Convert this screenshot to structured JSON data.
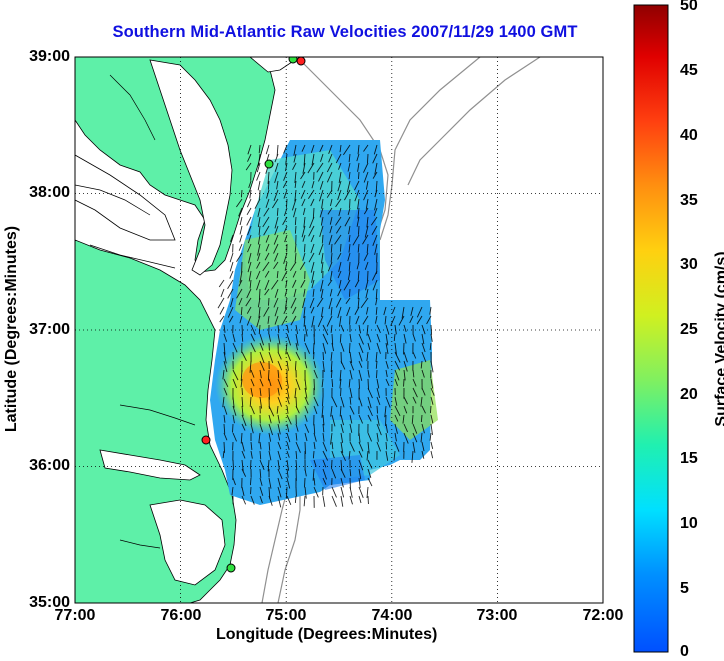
{
  "title": "Southern Mid-Atlantic Raw Velocities 2007/11/29 1400 GMT",
  "x_axis": {
    "label": "Longitude (Degrees:Minutes)",
    "ticks": [
      "77:00",
      "76:00",
      "75:00",
      "74:00",
      "73:00",
      "72:00"
    ]
  },
  "y_axis": {
    "label": "Latitude (Degrees:Minutes)",
    "ticks": [
      "39:00",
      "38:00",
      "37:00",
      "36:00",
      "35:00"
    ]
  },
  "colorbar": {
    "label": "Surface Velocity (cm/s)",
    "ticks": [
      "50",
      "45",
      "40",
      "35",
      "30",
      "25",
      "20",
      "15",
      "10",
      "5",
      "0"
    ],
    "range": [
      0,
      50
    ]
  },
  "colors": {
    "land": "#5ef0a8",
    "water": "#ffffff",
    "title": "#1010e0",
    "stations_red": "#ff2020",
    "stations_green": "#30e040"
  }
}
